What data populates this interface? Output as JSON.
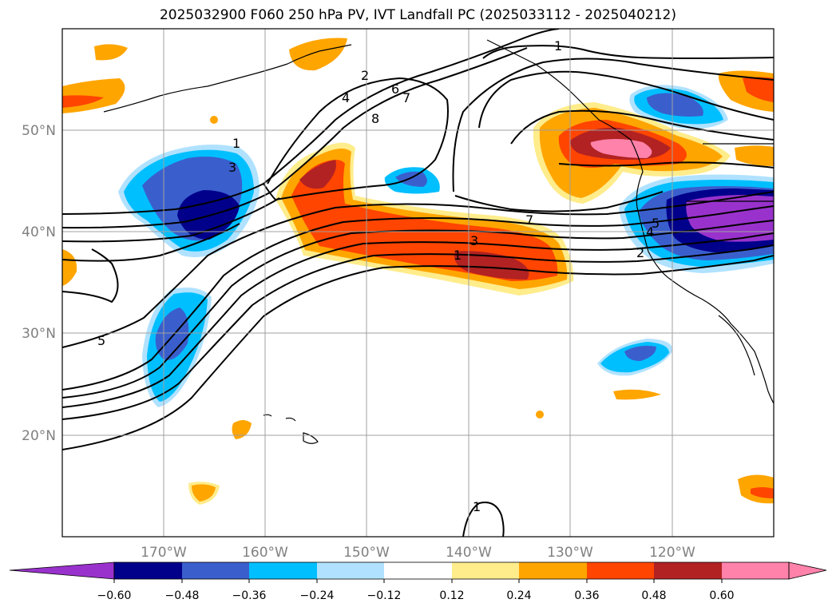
{
  "title": "2025032900 F060 250 hPa PV, IVT Landfall PC (2025033112 - 2025040212)",
  "lat_labels": [
    "50°N",
    "40°N",
    "30°N",
    "20°N"
  ],
  "lon_labels": [
    "170°W",
    "160°W",
    "150°W",
    "140°W",
    "130°W",
    "120°W"
  ],
  "contour_labels": [
    "1",
    "2",
    "4",
    "6",
    "7",
    "8",
    "1",
    "3",
    "7",
    "3",
    "1",
    "5",
    "4",
    "2",
    "5",
    "1"
  ],
  "colorbar": {
    "ticks": [
      "−0.60",
      "−0.48",
      "−0.36",
      "−0.24",
      "−0.12",
      "0.12",
      "0.24",
      "0.36",
      "0.48",
      "0.60"
    ],
    "colors": [
      "#9932cc",
      "#00008b",
      "#3a5fcd",
      "#00bfff",
      "#b0e2ff",
      "#ffffff",
      "#ffec8b",
      "#ffa500",
      "#ff4500",
      "#b22222",
      "#ff82ab",
      "#ff82ab"
    ]
  }
}
